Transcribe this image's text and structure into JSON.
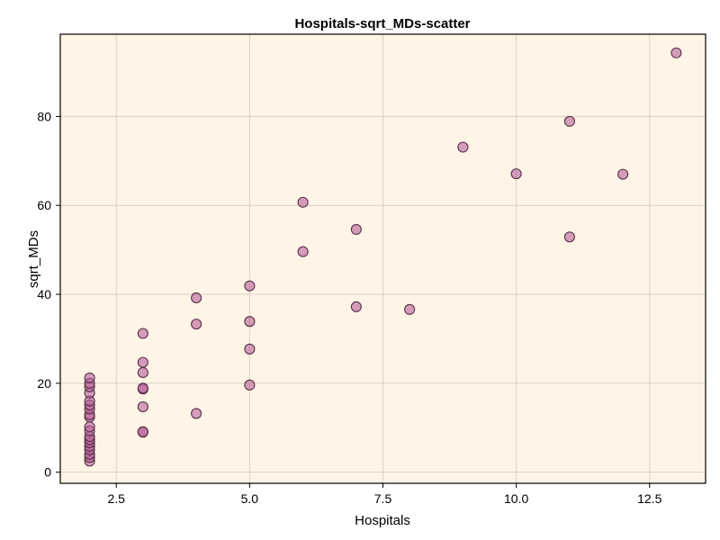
{
  "chart_data": {
    "type": "scatter",
    "title": "Hospitals-sqrt_MDs-scatter",
    "xlabel": "Hospitals",
    "ylabel": "sqrt_MDs",
    "xlim": [
      1.45,
      13.55
    ],
    "ylim": [
      -2.5,
      98.5
    ],
    "xticks": [
      2.5,
      5.0,
      7.5,
      10.0,
      12.5
    ],
    "xtick_labels": [
      "2.5",
      "5.0",
      "7.5",
      "10.0",
      "12.5"
    ],
    "yticks": [
      0,
      20,
      40,
      60,
      80
    ],
    "ytick_labels": [
      "0",
      "20",
      "40",
      "60",
      "80"
    ],
    "grid": true,
    "colors": {
      "background": "#fff5e6",
      "point_fill": "#b5619a",
      "point_opacity": 0.6,
      "point_edge": "#5a2e4a"
    },
    "points": [
      {
        "x": 2,
        "y": 2.5
      },
      {
        "x": 2,
        "y": 3.3
      },
      {
        "x": 2,
        "y": 4.0
      },
      {
        "x": 2,
        "y": 5.0
      },
      {
        "x": 2,
        "y": 5.8
      },
      {
        "x": 2,
        "y": 6.6
      },
      {
        "x": 2,
        "y": 7.3
      },
      {
        "x": 2,
        "y": 8.0
      },
      {
        "x": 2,
        "y": 9.3
      },
      {
        "x": 2,
        "y": 10.2
      },
      {
        "x": 2,
        "y": 12.4
      },
      {
        "x": 2,
        "y": 12.9
      },
      {
        "x": 2,
        "y": 14.2
      },
      {
        "x": 2,
        "y": 15.1
      },
      {
        "x": 2,
        "y": 16.0
      },
      {
        "x": 2,
        "y": 17.8
      },
      {
        "x": 2,
        "y": 19.2
      },
      {
        "x": 2,
        "y": 20.0
      },
      {
        "x": 2,
        "y": 21.2
      },
      {
        "x": 3,
        "y": 9.0
      },
      {
        "x": 3,
        "y": 9.1
      },
      {
        "x": 3,
        "y": 14.7
      },
      {
        "x": 3,
        "y": 18.7
      },
      {
        "x": 3,
        "y": 18.9
      },
      {
        "x": 3,
        "y": 22.4
      },
      {
        "x": 3,
        "y": 24.7
      },
      {
        "x": 3,
        "y": 31.2
      },
      {
        "x": 4,
        "y": 13.2
      },
      {
        "x": 4,
        "y": 33.3
      },
      {
        "x": 4,
        "y": 39.2
      },
      {
        "x": 5,
        "y": 19.6
      },
      {
        "x": 5,
        "y": 27.7
      },
      {
        "x": 5,
        "y": 33.9
      },
      {
        "x": 5,
        "y": 41.9
      },
      {
        "x": 6,
        "y": 49.6
      },
      {
        "x": 6,
        "y": 60.7
      },
      {
        "x": 7,
        "y": 37.2
      },
      {
        "x": 7,
        "y": 54.6
      },
      {
        "x": 8,
        "y": 36.6
      },
      {
        "x": 9,
        "y": 73.1
      },
      {
        "x": 10,
        "y": 67.1
      },
      {
        "x": 11,
        "y": 52.9
      },
      {
        "x": 11,
        "y": 78.9
      },
      {
        "x": 12,
        "y": 67.0
      },
      {
        "x": 13,
        "y": 94.3
      }
    ]
  }
}
